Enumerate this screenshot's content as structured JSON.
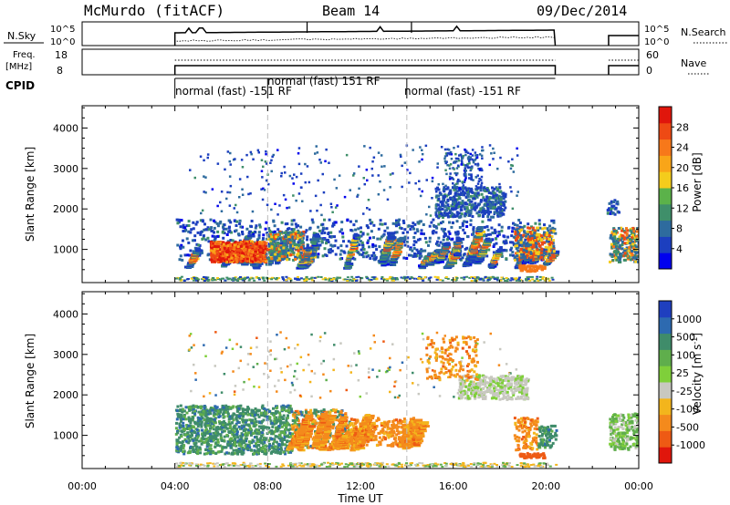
{
  "header": {
    "station": "McMurdo (fitACF)",
    "beam": "Beam 14",
    "date": "09/Dec/2014"
  },
  "summary": {
    "nsky_label": "N.Sky",
    "nsearch_label": "N.Search",
    "freq_label_line1": "Freq.",
    "freq_label_line2": "[MHz]",
    "nave_label": "Nave",
    "cpid_label": "CPID",
    "nsky_ticks": [
      "10^5",
      "10^0"
    ],
    "nsearch_ticks": [
      "10^5",
      "10^0"
    ],
    "freq_ticks": [
      "18",
      "8"
    ],
    "nave_ticks": [
      "60",
      "0"
    ],
    "cpid_segments": [
      {
        "label": "normal (fast) -151 RF",
        "start": 4.0,
        "end": 8.0
      },
      {
        "label": "normal (fast) 151 RF",
        "start": 8.0,
        "end": 14.0
      },
      {
        "label": "normal (fast) -151 RF",
        "start": 14.0,
        "end": 20.4
      }
    ]
  },
  "chart_data": [
    {
      "type": "heatmap",
      "title": "",
      "xlabel": "",
      "ylabel": "Slant Range [km]",
      "xlim": [
        0,
        24
      ],
      "ylim": [
        180,
        4550
      ],
      "yticks": [
        1000,
        2000,
        3000,
        4000
      ],
      "colorbar": {
        "label": "Power [dB]",
        "ticks": [
          "28",
          "24",
          "20",
          "16",
          "12",
          "8",
          "4"
        ],
        "colors": [
          "#0000ee",
          "#1c3fbf",
          "#2e6b9e",
          "#3f8f6a",
          "#5bb24a",
          "#f4cc1c",
          "#f9a518",
          "#f7781a",
          "#ee4a14",
          "#e0160c"
        ]
      },
      "data_gaps_hours": [
        [
          20.4,
          22.7
        ]
      ],
      "features": [
        {
          "x": [
            4.0,
            20.4
          ],
          "y": [
            300,
            1700
          ],
          "level": "moderate"
        },
        {
          "x": [
            5.8,
            7.8
          ],
          "y": [
            600,
            1200
          ],
          "level": "strong"
        },
        {
          "x": [
            15.0,
            18.2
          ],
          "y": [
            1700,
            3500
          ],
          "level": "weak"
        }
      ]
    },
    {
      "type": "heatmap",
      "title": "",
      "xlabel": "Time UT",
      "ylabel": "Slant Range [km]",
      "xlim": [
        0,
        24
      ],
      "ylim": [
        180,
        4550
      ],
      "yticks": [
        1000,
        2000,
        3000,
        4000
      ],
      "xticks": [
        "00:00",
        "04:00",
        "08:00",
        "12:00",
        "16:00",
        "20:00",
        "00:00"
      ],
      "colorbar": {
        "label": "Velocity [m s^-1]",
        "ticks": [
          "1000",
          "500",
          "100",
          "25",
          "-25",
          "-100",
          "-500",
          "-1000"
        ],
        "colors": [
          "#1f3fbf",
          "#2d6ab0",
          "#3f8c6a",
          "#5fae4c",
          "#7fcf3a",
          "#c8c8c0",
          "#f3b51c",
          "#f48a1c",
          "#ee5a14",
          "#e0160c"
        ]
      },
      "data_gaps_hours": [
        [
          20.4,
          22.7
        ]
      ],
      "features": [
        {
          "x": [
            4.0,
            9.0
          ],
          "y": [
            400,
            1700
          ],
          "level": "100 to 500"
        },
        {
          "x": [
            9.0,
            14.0
          ],
          "y": [
            600,
            1600
          ],
          "level": "-100 to -500"
        },
        {
          "x": [
            16.0,
            18.5
          ],
          "y": [
            1800,
            2500
          ],
          "level": "-25 to 25"
        }
      ]
    }
  ]
}
